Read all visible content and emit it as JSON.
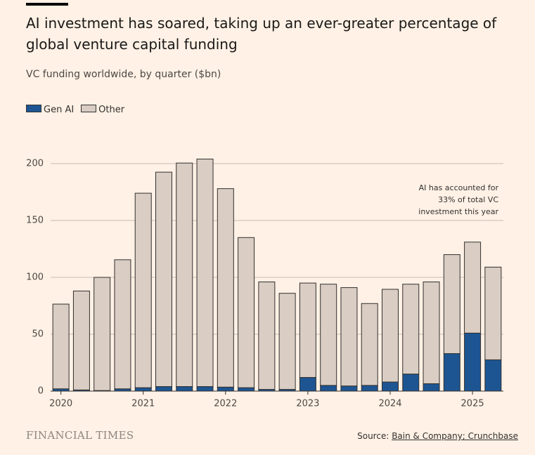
{
  "chart_data": {
    "type": "stacked_bar",
    "title": "AI investment has soared, taking up an ever-greater percentage of global venture capital funding",
    "subtitle": "VC funding worldwide, by quarter ($bn)",
    "categories": [
      "2020",
      null,
      null,
      null,
      "2021",
      null,
      null,
      null,
      "2022",
      null,
      null,
      null,
      "2023",
      null,
      null,
      null,
      "2024",
      null,
      null,
      null,
      "2025",
      null
    ],
    "series": [
      {
        "name": "Gen AI",
        "color": "#1d5592",
        "values": [
          2,
          1,
          0.5,
          2,
          3,
          4,
          4,
          4,
          3.5,
          3,
          1.5,
          1.5,
          12,
          5,
          4.5,
          5,
          8,
          15,
          6.5,
          33,
          51,
          27.5
        ]
      },
      {
        "name": "Other",
        "color": "#d9cdc4",
        "values": [
          74.5,
          87,
          99.5,
          113.5,
          171,
          188.5,
          196.5,
          200,
          174.5,
          132,
          94.5,
          84.5,
          83,
          89,
          86.5,
          72,
          81.5,
          79,
          89.5,
          87,
          80,
          81.5
        ]
      }
    ],
    "ylim": [
      0,
      210
    ],
    "yticks": [
      0,
      50,
      100,
      150,
      200
    ],
    "grid": true,
    "annotation": [
      "AI has accounted for",
      "33% of total VC",
      "investment this year"
    ],
    "brand": "FINANCIAL TIMES",
    "source_label": "Source:",
    "source": "Bain & Company; Crunchbase"
  }
}
